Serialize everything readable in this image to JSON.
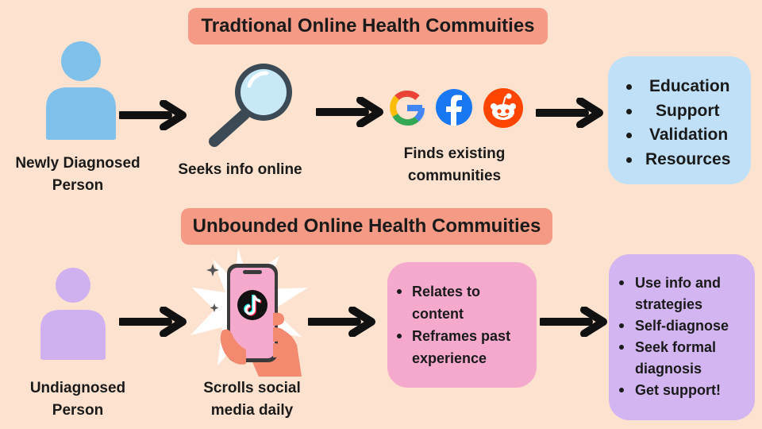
{
  "top": {
    "title": "Tradtional Online Health Commuities",
    "person_caption": [
      "Newly Diagnosed",
      "Person"
    ],
    "search_caption": [
      "Seeks info online"
    ],
    "communities_caption": [
      "Finds existing",
      "communities"
    ],
    "benefits": [
      "Education",
      "Support",
      "Validation",
      "Resources"
    ],
    "colors": {
      "person": "#7fc1ea",
      "box": "#bfe0f7"
    }
  },
  "bottom": {
    "title": "Unbounded Online Health Commuities",
    "person_caption": [
      "Undiagnosed",
      "Person"
    ],
    "phone_caption": [
      "Scrolls social",
      "media daily"
    ],
    "relates": [
      "Relates to",
      "content",
      "Reframes past",
      "experience"
    ],
    "outcomes": [
      "Use info and",
      "strategies",
      "Self-diagnose",
      "Seek formal",
      "diagnosis",
      "Get support!"
    ],
    "colors": {
      "person": "#cfb1ef",
      "box_pink": "#f4a9cd",
      "box_purple": "#d3b5f1"
    }
  },
  "icons": [
    "person-icon",
    "arrow-icon",
    "magnifier-icon",
    "google-icon",
    "facebook-icon",
    "reddit-icon",
    "hand-phone-icon",
    "tiktok-icon"
  ],
  "colors": {
    "background": "#fde3cf",
    "title_pill": "#f59a85"
  }
}
